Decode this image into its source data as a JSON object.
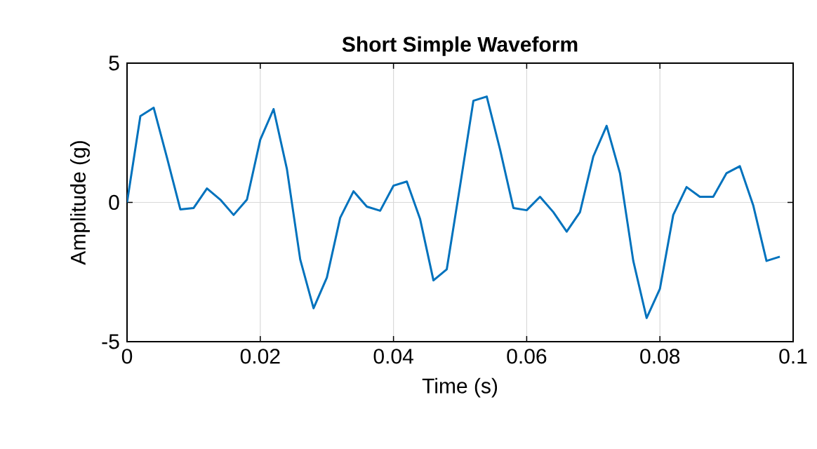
{
  "chart_data": {
    "type": "line",
    "title": "Short Simple Waveform",
    "xlabel": "Time (s)",
    "ylabel": "Amplitude (g)",
    "x": [
      0,
      0.002,
      0.004,
      0.006,
      0.008,
      0.01,
      0.012,
      0.014,
      0.016,
      0.018,
      0.02,
      0.022,
      0.024,
      0.026,
      0.028,
      0.03,
      0.032,
      0.034,
      0.036,
      0.038,
      0.04,
      0.042,
      0.044,
      0.046,
      0.048,
      0.05,
      0.052,
      0.054,
      0.056,
      0.058,
      0.06,
      0.062,
      0.064,
      0.066,
      0.068,
      0.07,
      0.072,
      0.074,
      0.076,
      0.078,
      0.08,
      0.082,
      0.084,
      0.086,
      0.088,
      0.09,
      0.092,
      0.094,
      0.096,
      0.098
    ],
    "series": [
      {
        "color": "#0072bd",
        "values": [
          0,
          3.1,
          3.4,
          1.6,
          -0.25,
          -0.2,
          0.5,
          0.1,
          -0.45,
          0.1,
          2.25,
          3.35,
          1.2,
          -2.05,
          -3.8,
          -2.7,
          -0.55,
          0.4,
          -0.15,
          -0.3,
          0.6,
          0.75,
          -0.6,
          -2.8,
          -2.4,
          0.6,
          3.65,
          3.8,
          1.9,
          -0.2,
          -0.28,
          0.2,
          -0.35,
          -1.05,
          -0.35,
          1.65,
          2.75,
          1.05,
          -2.1,
          -4.15,
          -3.1,
          -0.45,
          0.55,
          0.2,
          0.2,
          1.05,
          1.3,
          -0.1,
          -2.1,
          -1.95
        ]
      }
    ],
    "xlim": [
      0,
      0.1
    ],
    "ylim": [
      -5,
      5
    ],
    "xticks": [
      0,
      0.02,
      0.04,
      0.06,
      0.08,
      0.1
    ],
    "yticks": [
      -5,
      0,
      5
    ],
    "grid": true,
    "line_style": "solid",
    "marker": "none"
  }
}
